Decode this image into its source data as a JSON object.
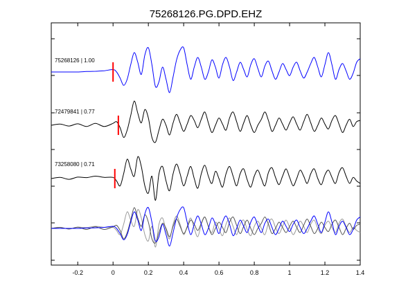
{
  "chart_data": {
    "type": "line",
    "title": "75268126.PG.DPD.EHZ",
    "xlabel": "",
    "ylabel": "",
    "xlim": [
      -0.35,
      1.4
    ],
    "x_ticks": [
      -0.2,
      0,
      0.2,
      0.4,
      0.6,
      0.8,
      1,
      1.2,
      1.4
    ],
    "x_tick_labels": [
      "-0.2",
      "0",
      "0.2",
      "0.4",
      "0.6",
      "0.8",
      "1",
      "1.2",
      "1.4"
    ],
    "grid": false,
    "pick_color": "#ff0000",
    "traces": [
      {
        "label": "75268126 | 1.00",
        "id": "75268126",
        "correlation": 1.0,
        "color": "#0000ff",
        "pick_time": 0.0,
        "x": [
          -0.35,
          -0.3,
          -0.25,
          -0.2,
          -0.15,
          -0.1,
          -0.05,
          0.0,
          0.02,
          0.04,
          0.06,
          0.08,
          0.1,
          0.12,
          0.14,
          0.16,
          0.18,
          0.2,
          0.22,
          0.24,
          0.26,
          0.28,
          0.3,
          0.32,
          0.34,
          0.36,
          0.38,
          0.4,
          0.42,
          0.44,
          0.46,
          0.48,
          0.5,
          0.52,
          0.54,
          0.56,
          0.58,
          0.6,
          0.62,
          0.64,
          0.66,
          0.68,
          0.7,
          0.72,
          0.74,
          0.76,
          0.78,
          0.8,
          0.82,
          0.84,
          0.86,
          0.88,
          0.9,
          0.92,
          0.94,
          0.96,
          0.98,
          1.0,
          1.02,
          1.04,
          1.06,
          1.08,
          1.1,
          1.12,
          1.14,
          1.16,
          1.18,
          1.2,
          1.22,
          1.24,
          1.26,
          1.28,
          1.3,
          1.32,
          1.34,
          1.36,
          1.38,
          1.4
        ],
        "y": [
          0.0,
          0.0,
          0.0,
          0.0,
          0.02,
          0.03,
          0.05,
          0.1,
          0.0,
          -0.25,
          -0.55,
          -0.3,
          0.3,
          0.8,
          0.4,
          -0.1,
          0.7,
          1.0,
          0.3,
          -0.6,
          -0.4,
          0.2,
          -0.3,
          -0.85,
          -0.2,
          0.5,
          0.9,
          1.0,
          0.3,
          -0.3,
          0.2,
          0.6,
          0.2,
          -0.3,
          0.0,
          0.5,
          0.2,
          -0.25,
          0.3,
          0.6,
          0.2,
          -0.35,
          0.0,
          0.4,
          0.1,
          -0.2,
          0.3,
          0.55,
          0.15,
          -0.2,
          0.25,
          0.45,
          0.05,
          -0.3,
          0.0,
          0.35,
          0.1,
          -0.15,
          0.2,
          0.4,
          0.05,
          -0.25,
          0.0,
          0.35,
          0.6,
          0.2,
          -0.2,
          0.3,
          0.8,
          0.3,
          -0.3,
          0.1,
          0.35,
          0.05,
          -0.3,
          -0.05,
          0.4,
          0.55
        ]
      },
      {
        "label": "72479841 | 0.77",
        "id": "72479841",
        "correlation": 0.77,
        "color": "#000000",
        "pick_time": 0.03,
        "x": [
          -0.35,
          -0.3,
          -0.25,
          -0.2,
          -0.15,
          -0.1,
          -0.05,
          0.0,
          0.02,
          0.04,
          0.06,
          0.08,
          0.1,
          0.12,
          0.14,
          0.16,
          0.18,
          0.2,
          0.22,
          0.24,
          0.26,
          0.28,
          0.3,
          0.32,
          0.34,
          0.36,
          0.38,
          0.4,
          0.42,
          0.44,
          0.46,
          0.48,
          0.5,
          0.52,
          0.54,
          0.56,
          0.58,
          0.6,
          0.62,
          0.64,
          0.66,
          0.68,
          0.7,
          0.72,
          0.74,
          0.76,
          0.78,
          0.8,
          0.82,
          0.84,
          0.86,
          0.88,
          0.9,
          0.92,
          0.94,
          0.96,
          0.98,
          1.0,
          1.02,
          1.04,
          1.06,
          1.08,
          1.1,
          1.12,
          1.14,
          1.16,
          1.18,
          1.2,
          1.22,
          1.24,
          1.26,
          1.28,
          1.3,
          1.32,
          1.34,
          1.36,
          1.38,
          1.4
        ],
        "y": [
          0.0,
          0.05,
          -0.03,
          0.06,
          -0.05,
          0.08,
          -0.05,
          0.08,
          0.15,
          -0.1,
          -0.5,
          -0.2,
          0.4,
          1.0,
          0.5,
          0.1,
          0.65,
          0.3,
          -0.5,
          -0.7,
          -0.2,
          0.25,
          0.0,
          -0.4,
          0.1,
          0.45,
          0.1,
          -0.25,
          0.05,
          0.4,
          0.2,
          -0.1,
          0.25,
          0.55,
          0.1,
          -0.3,
          0.0,
          0.3,
          0.05,
          -0.2,
          0.3,
          0.55,
          0.15,
          -0.25,
          0.1,
          0.4,
          0.0,
          -0.3,
          0.0,
          0.25,
          0.55,
          0.2,
          -0.25,
          0.0,
          0.3,
          0.05,
          -0.2,
          0.1,
          0.35,
          0.05,
          -0.2,
          0.15,
          0.45,
          0.1,
          -0.25,
          0.0,
          0.3,
          0.05,
          -0.15,
          0.2,
          0.4,
          0.05,
          -0.3,
          0.0,
          0.25,
          -0.05,
          0.15,
          0.2
        ]
      },
      {
        "label": "73258080 | 0.71",
        "id": "73258080",
        "correlation": 0.71,
        "color": "#000000",
        "pick_time": 0.01,
        "x": [
          -0.35,
          -0.3,
          -0.25,
          -0.2,
          -0.15,
          -0.1,
          -0.05,
          0.0,
          0.02,
          0.04,
          0.06,
          0.08,
          0.1,
          0.12,
          0.14,
          0.16,
          0.18,
          0.2,
          0.22,
          0.24,
          0.26,
          0.28,
          0.3,
          0.32,
          0.34,
          0.36,
          0.38,
          0.4,
          0.42,
          0.44,
          0.46,
          0.48,
          0.5,
          0.52,
          0.54,
          0.56,
          0.58,
          0.6,
          0.62,
          0.64,
          0.66,
          0.68,
          0.7,
          0.72,
          0.74,
          0.76,
          0.78,
          0.8,
          0.82,
          0.84,
          0.86,
          0.88,
          0.9,
          0.92,
          0.94,
          0.96,
          0.98,
          1.0,
          1.02,
          1.04,
          1.06,
          1.08,
          1.1,
          1.12,
          1.14,
          1.16,
          1.18,
          1.2,
          1.22,
          1.24,
          1.26,
          1.28,
          1.3,
          1.32,
          1.34,
          1.36,
          1.38,
          1.4
        ],
        "y": [
          0.0,
          0.05,
          -0.03,
          0.06,
          0.04,
          0.1,
          0.05,
          0.05,
          -0.1,
          -0.3,
          0.2,
          0.8,
          0.4,
          0.1,
          0.9,
          0.5,
          -0.3,
          -0.6,
          0.1,
          -0.9,
          0.2,
          0.5,
          -0.1,
          -0.5,
          0.2,
          0.6,
          0.2,
          -0.3,
          0.1,
          0.5,
          0.0,
          -0.4,
          0.2,
          0.55,
          0.1,
          -0.2,
          0.3,
          0.0,
          -0.35,
          0.2,
          0.5,
          0.1,
          -0.3,
          0.2,
          0.4,
          -0.05,
          -0.35,
          0.1,
          0.35,
          0.0,
          -0.3,
          0.25,
          0.45,
          0.05,
          -0.25,
          0.1,
          0.4,
          0.05,
          -0.3,
          0.0,
          0.35,
          0.1,
          -0.2,
          0.2,
          0.4,
          0.0,
          -0.25,
          0.15,
          0.35,
          0.05,
          -0.2,
          0.25,
          0.45,
          0.1,
          -0.2,
          0.05,
          -0.1,
          -0.2
        ]
      }
    ],
    "overlay": {
      "description_free": true,
      "colors": [
        "#0000ff",
        "#555555",
        "#999999"
      ]
    }
  }
}
